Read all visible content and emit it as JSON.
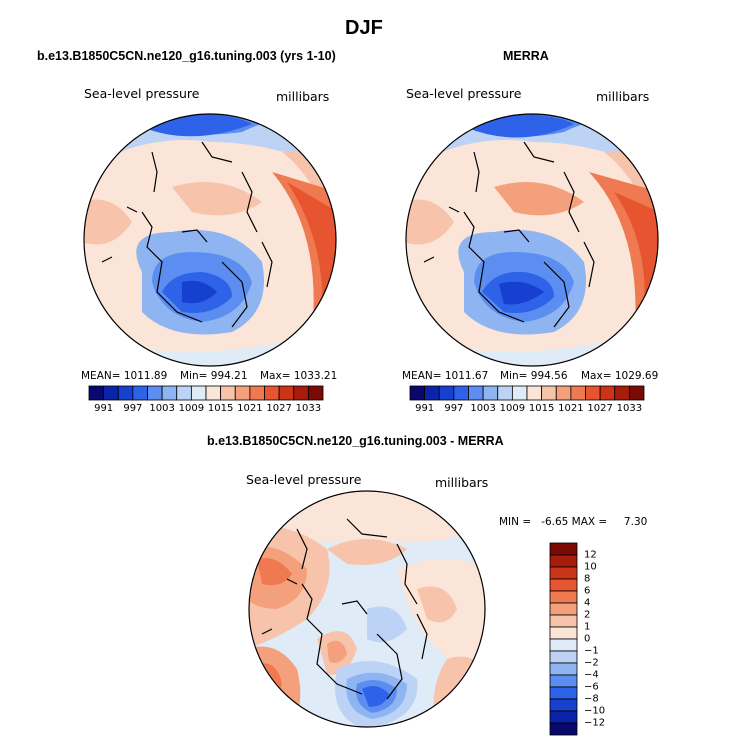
{
  "figure": {
    "season": "DJF"
  },
  "panels": [
    {
      "title": "b.e13.B1850C5CN.ne120_g16.tuning.003 (yrs 1-10)",
      "variable": "Sea-level pressure",
      "units": "millibars",
      "mean_label": "MEAN= 1011.89",
      "min_label": "Min= 994.21",
      "max_label": "Max= 1033.21"
    },
    {
      "title": "MERRA",
      "variable": "Sea-level pressure",
      "units": "millibars",
      "mean_label": "MEAN= 1011.67",
      "min_label": "Min= 994.56",
      "max_label": "Max= 1029.69"
    },
    {
      "title": "b.e13.B1850C5CN.ne120_g16.tuning.003 - MERRA",
      "variable": "Sea-level pressure",
      "units": "millibars",
      "range_label": "MIN =   -6.65 MAX =     7.30"
    }
  ],
  "abs_colorbar": {
    "ticks": [
      "991",
      "997",
      "1003",
      "1009",
      "1015",
      "1021",
      "1027",
      "1033"
    ],
    "colors": [
      "#08086e",
      "#0b23a8",
      "#1540d0",
      "#2e62e8",
      "#5b8ef0",
      "#8fb4f2",
      "#bcd3f5",
      "#e0ebf8",
      "#fbe5d8",
      "#f7c4ab",
      "#f4a07c",
      "#ef7a52",
      "#e65530",
      "#cc3418",
      "#a81c0c",
      "#7a0a04"
    ]
  },
  "diff_colorbar": {
    "ticks": [
      "12",
      "10",
      "8",
      "6",
      "4",
      "2",
      "1",
      "0",
      "−1",
      "−2",
      "−4",
      "−6",
      "−8",
      "−10",
      "−12"
    ],
    "colors": [
      "#7a0a04",
      "#a81c0c",
      "#cc3418",
      "#e65530",
      "#ef7a52",
      "#f4a07c",
      "#f7c4ab",
      "#fbe5d8",
      "#e0ebf8",
      "#bcd3f5",
      "#8fb4f2",
      "#5b8ef0",
      "#2e62e8",
      "#1540d0",
      "#0b23a8",
      "#08086e"
    ]
  }
}
